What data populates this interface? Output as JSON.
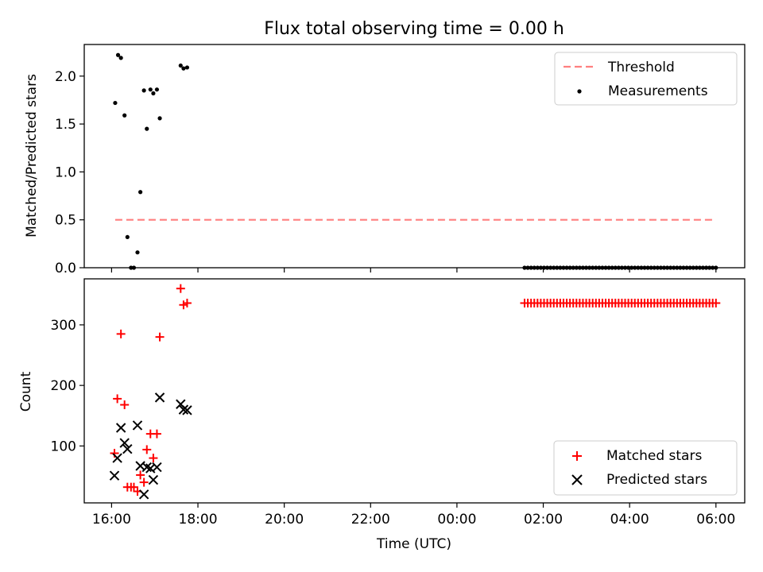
{
  "figure": {
    "title": "Flux total observing time = 0.00 h",
    "xlabel": "Time (UTC)"
  },
  "chart_data": [
    {
      "type": "scatter",
      "ylabel": "Matched/Predicted stars",
      "ylim": [
        0,
        2.33
      ],
      "xlim": [
        "15:22",
        "06:40"
      ],
      "x_tick_labels": [
        "16:00",
        "18:00",
        "20:00",
        "22:00",
        "00:00",
        "02:00",
        "04:00",
        "06:00"
      ],
      "y_ticks": [
        0.0,
        0.5,
        1.0,
        1.5,
        2.0
      ],
      "y_tick_labels": [
        "0.0",
        "0.5",
        "1.0",
        "1.5",
        "2.0"
      ],
      "grid": false,
      "legend_position": "top-right",
      "threshold": {
        "name": "Threshold",
        "value": 0.5,
        "x_start": "16:05",
        "x_end": "06:00",
        "color": "#ff7f7f"
      },
      "series": [
        {
          "name": "Measurements",
          "color": "#000000",
          "marker": "dot",
          "points": [
            [
              "16:05",
              1.72
            ],
            [
              "16:09",
              2.22
            ],
            [
              "16:13",
              2.19
            ],
            [
              "16:18",
              1.59
            ],
            [
              "16:22",
              0.32
            ],
            [
              "16:27",
              0.0
            ],
            [
              "16:31",
              0.0
            ],
            [
              "16:36",
              0.16
            ],
            [
              "16:40",
              0.79
            ],
            [
              "16:45",
              1.85
            ],
            [
              "16:49",
              1.45
            ],
            [
              "16:54",
              1.86
            ],
            [
              "16:58",
              1.82
            ],
            [
              "17:03",
              1.86
            ],
            [
              "17:07",
              1.56
            ],
            [
              "17:36",
              2.11
            ],
            [
              "17:40",
              2.08
            ],
            [
              "17:45",
              2.09
            ]
          ],
          "constant_run": {
            "x_start": "01:34",
            "x_end": "06:00",
            "count": 60,
            "value": 0.0
          }
        }
      ]
    },
    {
      "type": "scatter",
      "ylabel": "Count",
      "ylim": [
        6,
        376
      ],
      "xlim": [
        "15:22",
        "06:40"
      ],
      "x_tick_labels": [
        "16:00",
        "18:00",
        "20:00",
        "22:00",
        "00:00",
        "02:00",
        "04:00",
        "06:00"
      ],
      "y_ticks": [
        100,
        200,
        300
      ],
      "y_tick_labels": [
        "100",
        "200",
        "300"
      ],
      "grid": false,
      "legend_position": "bottom-right",
      "series": [
        {
          "name": "Matched stars",
          "color": "#ff0000",
          "marker": "plus",
          "points": [
            [
              "16:04",
              88
            ],
            [
              "16:08",
              178
            ],
            [
              "16:13",
              285
            ],
            [
              "16:18",
              168
            ],
            [
              "16:22",
              32
            ],
            [
              "16:27",
              32
            ],
            [
              "16:31",
              32
            ],
            [
              "16:36",
              25
            ],
            [
              "16:40",
              52
            ],
            [
              "16:45",
              40
            ],
            [
              "16:49",
              94
            ],
            [
              "16:54",
              120
            ],
            [
              "16:58",
              80
            ],
            [
              "17:03",
              120
            ],
            [
              "17:07",
              280
            ],
            [
              "17:36",
              360
            ],
            [
              "17:40",
              333
            ],
            [
              "17:45",
              336
            ]
          ],
          "constant_run": {
            "x_start": "01:34",
            "x_end": "06:00",
            "count": 60,
            "value": 336
          }
        },
        {
          "name": "Predicted stars",
          "color": "#000000",
          "marker": "x",
          "points": [
            [
              "16:04",
              51
            ],
            [
              "16:08",
              80
            ],
            [
              "16:13",
              130
            ],
            [
              "16:18",
              105
            ],
            [
              "16:22",
              95
            ],
            [
              "16:36",
              134
            ],
            [
              "16:40",
              67
            ],
            [
              "16:45",
              20
            ],
            [
              "16:49",
              65
            ],
            [
              "16:54",
              63
            ],
            [
              "16:58",
              44
            ],
            [
              "17:03",
              65
            ],
            [
              "17:07",
              180
            ],
            [
              "17:36",
              169
            ],
            [
              "17:40",
              160
            ],
            [
              "17:45",
              159
            ]
          ]
        }
      ]
    }
  ]
}
